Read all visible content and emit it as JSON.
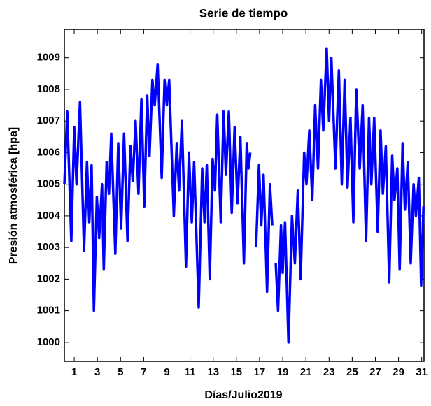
{
  "chart_data": {
    "type": "line",
    "title": "Serie de tiempo",
    "x_label": "Días/Julio2019",
    "y_label": "Presión atmosférica [hpa]",
    "x": [
      0.15,
      0.4,
      0.75,
      1,
      1.2,
      1.5,
      1.85,
      2.1,
      2.3,
      2.5,
      2.7,
      2.95,
      3.15,
      3.4,
      3.55,
      3.8,
      4,
      4.2,
      4.55,
      4.8,
      5.05,
      5.3,
      5.6,
      5.85,
      6.05,
      6.3,
      6.55,
      6.8,
      7.05,
      7.3,
      7.5,
      7.75,
      7.95,
      8.2,
      8.55,
      8.8,
      9,
      9.2,
      9.6,
      9.85,
      10.05,
      10.3,
      10.65,
      10.9,
      11.15,
      11.35,
      11.75,
      12.05,
      12.25,
      12.45,
      12.7,
      12.95,
      13.15,
      13.35,
      13.65,
      13.9,
      14.1,
      14.35,
      14.6,
      14.85,
      15.1,
      15.35,
      15.65,
      15.9,
      16.05,
      16.2,
      16.45,
      16.7,
      16.95,
      17.15,
      17.35,
      17.65,
      17.9,
      18.1,
      18.25,
      18.4,
      18.6,
      18.85,
      19,
      19.2,
      19.5,
      19.8,
      20.05,
      20.3,
      20.55,
      20.85,
      21.05,
      21.3,
      21.55,
      21.8,
      22.05,
      22.3,
      22.5,
      22.8,
      23,
      23.2,
      23.55,
      23.85,
      24.1,
      24.35,
      24.6,
      24.85,
      25.1,
      25.35,
      25.65,
      25.9,
      26.2,
      26.45,
      26.65,
      26.9,
      27.2,
      27.45,
      27.65,
      27.9,
      28.2,
      28.45,
      28.65,
      28.9,
      29.1,
      29.35,
      29.55,
      29.8,
      30.05,
      30.3,
      30.5,
      30.75,
      30.95,
      31.15
    ],
    "series": [
      {
        "color": "#0000ff",
        "values": [
          1005,
          1007.3,
          1003.2,
          1006.8,
          1005,
          1007.6,
          1002.9,
          1005.7,
          1003.8,
          1005.6,
          1001,
          1004.6,
          1003.3,
          1005,
          1002.3,
          1005.7,
          1004.7,
          1006.6,
          1002.8,
          1006.3,
          1003.6,
          1006.6,
          1003.2,
          1006.2,
          1005.1,
          1007,
          1004.7,
          1007.7,
          1004.3,
          1007.8,
          1005.9,
          1008.3,
          1007.5,
          1008.8,
          1005.2,
          1008.3,
          1007.5,
          1008.3,
          1004,
          1006.3,
          1004.8,
          1007,
          1002.4,
          1006,
          1003.8,
          1005.7,
          1001.1,
          1005.5,
          1003.8,
          1005.6,
          1002,
          1005.8,
          1004.8,
          1007.2,
          1003.8,
          1007.3,
          1005.3,
          1007.3,
          1004.1,
          1006.8,
          1004.4,
          1006.5,
          1002.5,
          1006.3,
          1005.5,
          1006,
          null,
          1003,
          1005.6,
          1003.7,
          1005.3,
          1001.6,
          1005,
          1003.7,
          null,
          1002.5,
          1001,
          1003.7,
          1002.2,
          1003.8,
          1000,
          1004,
          1002.5,
          1004.8,
          1002,
          1006,
          1005,
          1006.7,
          1004.5,
          1007.5,
          1005.5,
          1008.3,
          1006.7,
          1009.3,
          1007,
          1009,
          1005.5,
          1008.6,
          1005,
          1008.3,
          1004.9,
          1007.1,
          1003.8,
          1008,
          1005.5,
          1007.5,
          1003.2,
          1007.1,
          1005,
          1007.1,
          1003.5,
          1006.7,
          1004.7,
          1006.2,
          1001.9,
          1005.9,
          1004.5,
          1005.5,
          1002.3,
          1006.3,
          1004.2,
          1005.7,
          1002.5,
          1005,
          1004,
          1005.2,
          1001.8,
          1004.3
        ]
      }
    ],
    "xlim": [
      0.15,
      31.2
    ],
    "ylim": [
      999.4,
      1009.9
    ],
    "xticks": [
      1,
      3,
      5,
      7,
      9,
      11,
      13,
      15,
      17,
      19,
      21,
      23,
      25,
      27,
      29,
      31
    ],
    "yticks": [
      1000,
      1001,
      1002,
      1003,
      1004,
      1005,
      1006,
      1007,
      1008,
      1009
    ]
  }
}
